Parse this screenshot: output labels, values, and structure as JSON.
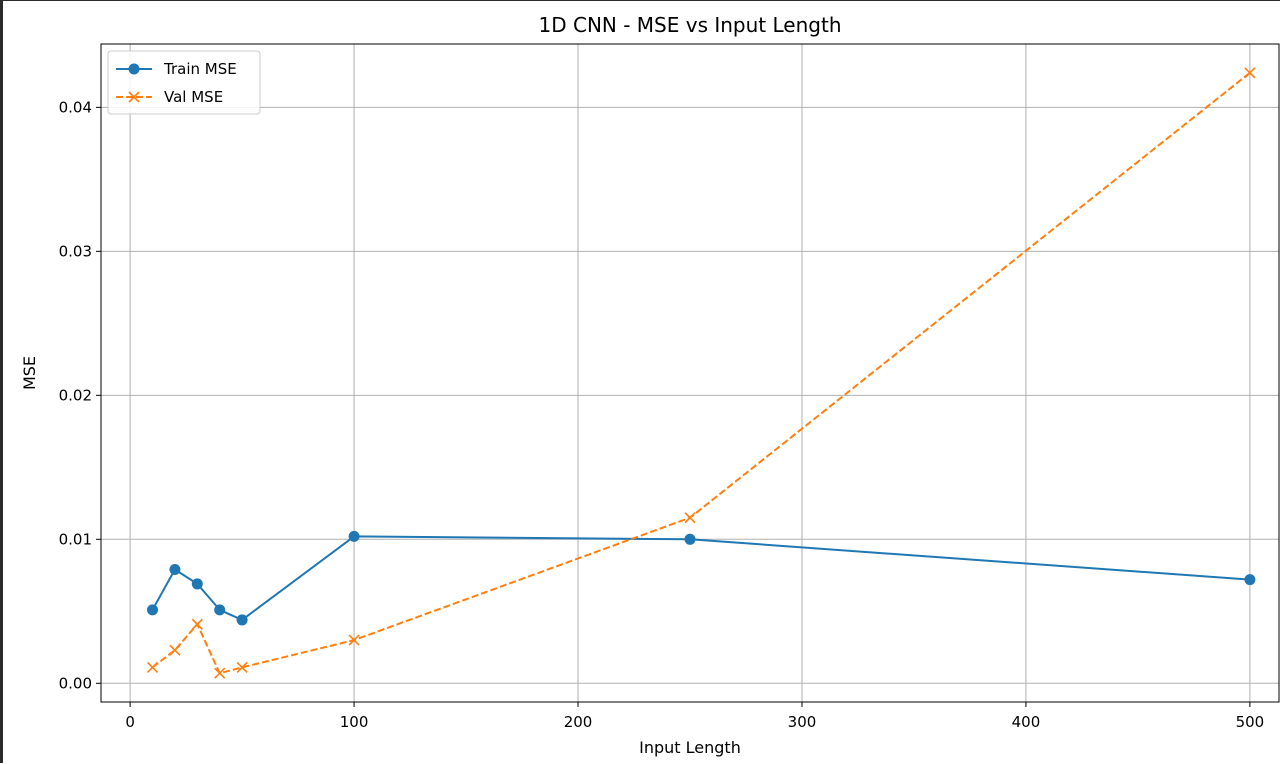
{
  "chart_data": {
    "type": "line",
    "title": "1D CNN - MSE vs Input Length",
    "xlabel": "Input Length",
    "ylabel": "MSE",
    "xlim": [
      -13,
      513
    ],
    "ylim": [
      -0.0013,
      0.0444
    ],
    "xticks": [
      0,
      100,
      200,
      300,
      400,
      500
    ],
    "xtick_labels": [
      "0",
      "100",
      "200",
      "300",
      "400",
      "500"
    ],
    "yticks": [
      0.0,
      0.01,
      0.02,
      0.03,
      0.04
    ],
    "ytick_labels": [
      "0.00",
      "0.01",
      "0.02",
      "0.03",
      "0.04"
    ],
    "grid": true,
    "legend_position": "top-left",
    "series": [
      {
        "name": "Train MSE",
        "color": "#1f77b4",
        "line_style": "solid",
        "marker": "circle",
        "x": [
          10,
          20,
          30,
          40,
          50,
          100,
          250,
          500
        ],
        "y": [
          0.0051,
          0.0079,
          0.0069,
          0.0051,
          0.0044,
          0.0102,
          0.01,
          0.0072
        ]
      },
      {
        "name": "Val MSE",
        "color": "#ff7f0e",
        "line_style": "dashed",
        "marker": "x",
        "x": [
          10,
          20,
          30,
          40,
          50,
          100,
          250,
          500
        ],
        "y": [
          0.0011,
          0.0023,
          0.0041,
          0.0007,
          0.0011,
          0.003,
          0.0115,
          0.0424
        ]
      }
    ]
  }
}
